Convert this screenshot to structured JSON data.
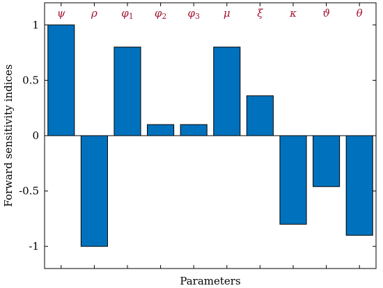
{
  "chart_data": {
    "type": "bar",
    "categories": [
      {
        "symbol": "ψ",
        "sub": ""
      },
      {
        "symbol": "ρ",
        "sub": ""
      },
      {
        "symbol": "φ",
        "sub": "1"
      },
      {
        "symbol": "φ",
        "sub": "2"
      },
      {
        "symbol": "φ",
        "sub": "3"
      },
      {
        "symbol": "μ",
        "sub": ""
      },
      {
        "symbol": "ξ",
        "sub": ""
      },
      {
        "symbol": "κ",
        "sub": ""
      },
      {
        "symbol": "ϑ",
        "sub": ""
      },
      {
        "symbol": "θ",
        "sub": ""
      }
    ],
    "values": [
      1.0,
      -1.0,
      0.8,
      0.1,
      0.1,
      0.8,
      0.36,
      -0.8,
      -0.46,
      -0.9
    ],
    "xlabel": "Parameters",
    "ylabel": "Forward sensitivity indices",
    "ylim": [
      -1.2,
      1.2
    ],
    "yticks": [
      -1,
      -0.5,
      0,
      0.5,
      1
    ],
    "ytick_labels": [
      "-1",
      "-0.5",
      "0",
      "0.5",
      "1"
    ],
    "grid": false,
    "colors": {
      "bar_fill": "#0072BD",
      "bar_stroke": "#000000",
      "category_label": "#A2142F",
      "axis": "#000000"
    }
  }
}
